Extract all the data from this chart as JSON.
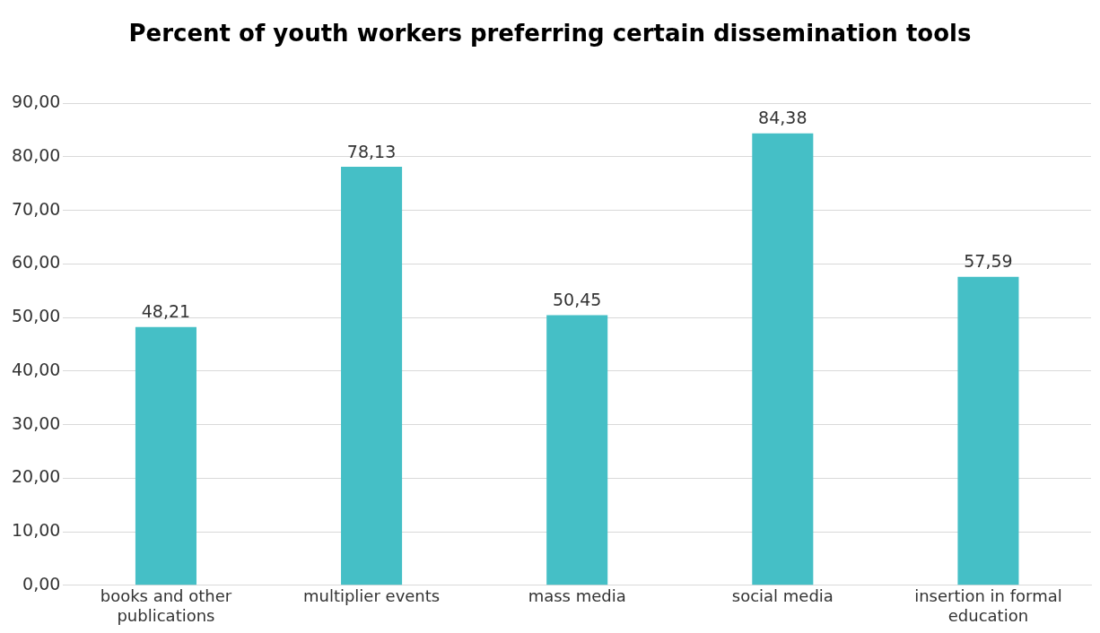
{
  "chart_data": {
    "type": "bar",
    "title": "Percent of youth workers preferring certain dissemination tools",
    "categories": [
      "books and other publications",
      "multiplier events",
      "mass media",
      "social media",
      "insertion in formal education"
    ],
    "values": [
      48.21,
      78.13,
      50.45,
      84.38,
      57.59
    ],
    "value_labels": [
      "48,21",
      "78,13",
      "50,45",
      "84,38",
      "57,59"
    ],
    "color": "#45bfc6",
    "ylim": [
      0,
      90
    ],
    "yticks": [
      {
        "value": 0,
        "label": "0,00"
      },
      {
        "value": 10,
        "label": "10,00"
      },
      {
        "value": 20,
        "label": "20,00"
      },
      {
        "value": 30,
        "label": "30,00"
      },
      {
        "value": 40,
        "label": "40,00"
      },
      {
        "value": 50,
        "label": "50,00"
      },
      {
        "value": 60,
        "label": "60,00"
      },
      {
        "value": 70,
        "label": "70,00"
      },
      {
        "value": 80,
        "label": "80,00"
      },
      {
        "value": 90,
        "label": "90,00"
      }
    ],
    "grid": "y",
    "legend": false
  }
}
